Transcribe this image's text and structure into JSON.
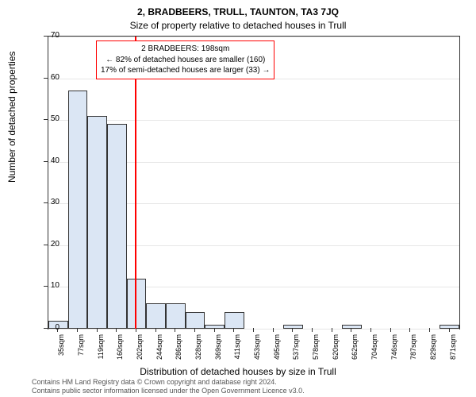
{
  "chart": {
    "type": "histogram",
    "title_main": "2, BRADBEERS, TRULL, TAUNTON, TA3 7JQ",
    "title_sub": "Size of property relative to detached houses in Trull",
    "y_axis_label": "Number of detached properties",
    "x_axis_label": "Distribution of detached houses by size in Trull",
    "ylim": [
      0,
      70
    ],
    "ytick_step": 10,
    "y_ticks": [
      0,
      10,
      20,
      30,
      40,
      50,
      60,
      70
    ],
    "x_categories": [
      "35sqm",
      "77sqm",
      "119sqm",
      "160sqm",
      "202sqm",
      "244sqm",
      "286sqm",
      "328sqm",
      "369sqm",
      "411sqm",
      "453sqm",
      "495sqm",
      "537sqm",
      "578sqm",
      "620sqm",
      "662sqm",
      "704sqm",
      "746sqm",
      "787sqm",
      "829sqm",
      "871sqm"
    ],
    "values": [
      2,
      57,
      51,
      49,
      12,
      6,
      6,
      4,
      1,
      4,
      0,
      0,
      1,
      0,
      0,
      1,
      0,
      0,
      0,
      0,
      1
    ],
    "bar_fill": "#dbe6f4",
    "bar_stroke": "#333333",
    "bar_stroke_width": 0.5,
    "grid_color": "#e6e6e6",
    "background_color": "#ffffff",
    "marker_color": "#ff0000",
    "marker_width": 2,
    "marker_x_position": 198,
    "x_range": [
      14,
      892
    ],
    "info_box": {
      "line1": "2 BRADBEERS: 198sqm",
      "line2": "← 82% of detached houses are smaller (160)",
      "line3": "17% of semi-detached houses are larger (33) →",
      "border_color": "#ff0000"
    },
    "footer_line1": "Contains HM Land Registry data © Crown copyright and database right 2024.",
    "footer_line2": "Contains public sector information licensed under the Open Government Licence v3.0."
  }
}
